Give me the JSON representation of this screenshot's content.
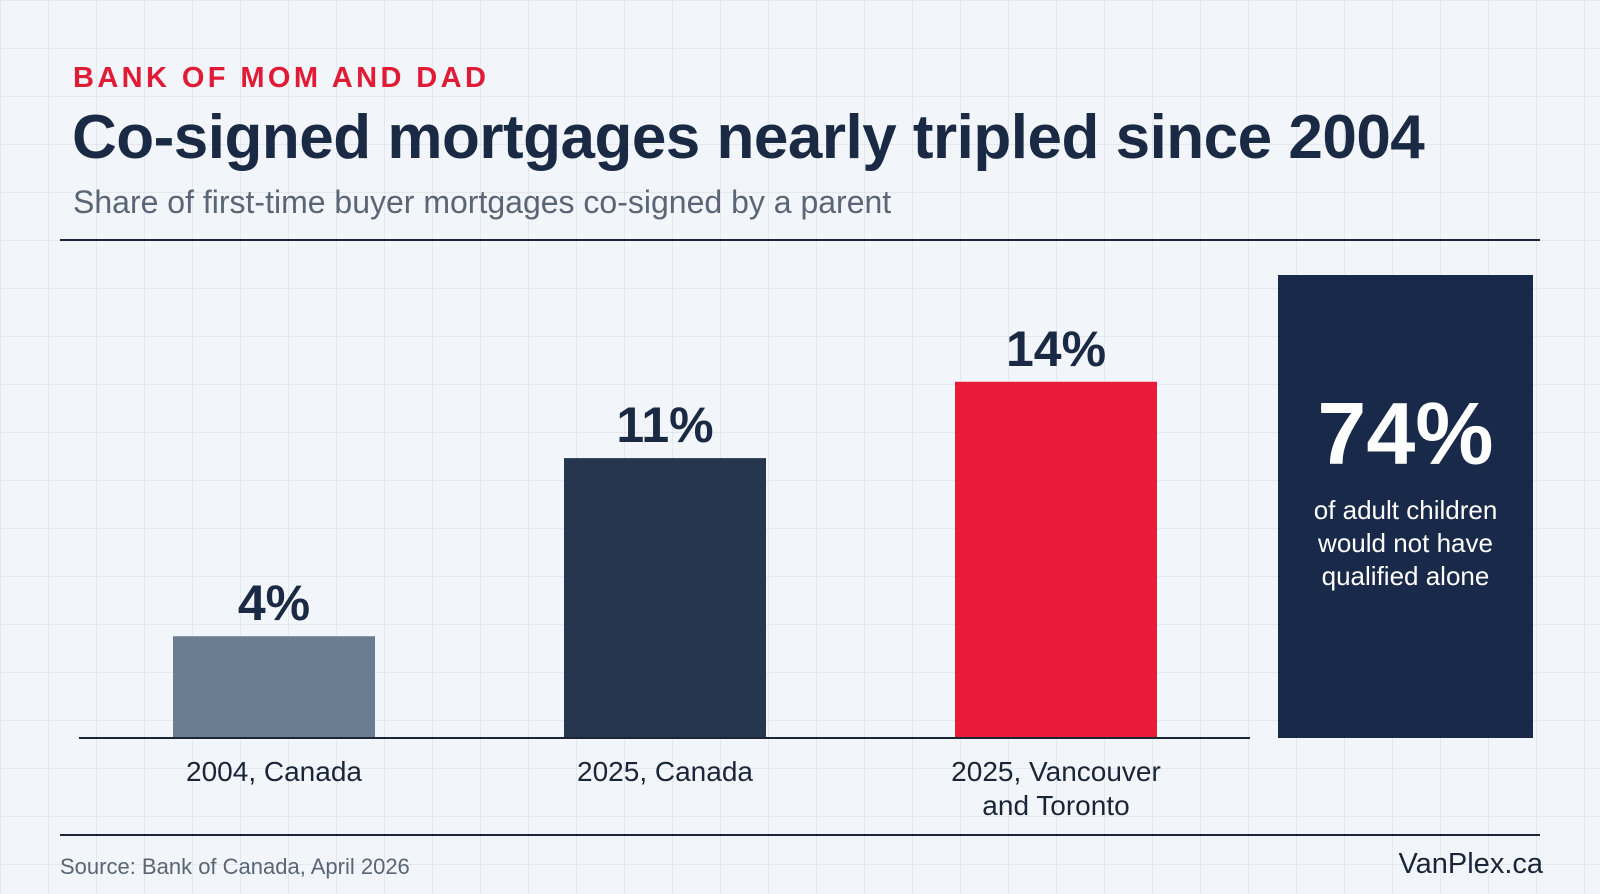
{
  "header": {
    "eyebrow": "BANK OF MOM AND DAD",
    "title": "Co-signed mortgages nearly tripled since 2004",
    "subtitle": "Share of first-time buyer mortgages co-signed by a parent"
  },
  "chart_data": {
    "type": "bar",
    "title": "Co-signed mortgages nearly tripled since 2004",
    "subtitle": "Share of first-time buyer mortgages co-signed by a parent",
    "categories": [
      "2004, Canada",
      "2025, Canada",
      "2025, Vancouver and Toronto"
    ],
    "category_lines": [
      [
        "2004, Canada"
      ],
      [
        "2025, Canada"
      ],
      [
        "2025, Vancouver",
        "and Toronto"
      ]
    ],
    "values": [
      4,
      11,
      14
    ],
    "value_labels": [
      "4%",
      "11%",
      "14%"
    ],
    "colors": [
      "#6b7d91",
      "#27364f",
      "#e81b38"
    ],
    "ylim": [
      0,
      18
    ],
    "xlabel": "",
    "ylabel": "",
    "grid": false,
    "legend": "none"
  },
  "callout": {
    "value": "74%",
    "text": "of adult children would not have qualified alone",
    "background": "#19294a"
  },
  "footer": {
    "source": "Source: Bank of Canada, April 2026",
    "brand": "VanPlex.ca"
  },
  "colors": {
    "accent": "#e01b36",
    "title": "#1a2a44",
    "background": "#f2f5f9"
  }
}
